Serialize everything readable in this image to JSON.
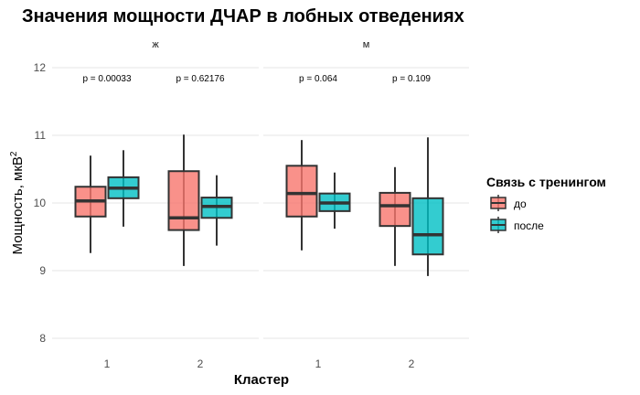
{
  "chart_data": {
    "type": "boxplot",
    "title": "Значения мощности ДЧАР в лобных отведениях",
    "xlabel": "Кластер",
    "ylabel": "Мощность, мкВ",
    "ylabel_sup": "2",
    "ylim": [
      8,
      12
    ],
    "yticks": [
      8,
      9,
      10,
      11,
      12
    ],
    "categories": [
      "1",
      "2"
    ],
    "grid": true,
    "legend": {
      "title": "Связь с тренингом",
      "placement": "right",
      "entries": [
        {
          "name": "до",
          "color": "#F8766D"
        },
        {
          "name": "после",
          "color": "#00BFC4"
        }
      ]
    },
    "panels": [
      {
        "label": "ж",
        "pvalues": [
          "p = 0.00033",
          "p = 0.62176"
        ],
        "boxes": [
          {
            "cluster": "1",
            "group": "до",
            "min": 9.26,
            "q1": 9.8,
            "median": 10.03,
            "q3": 10.24,
            "max": 10.7
          },
          {
            "cluster": "1",
            "group": "после",
            "min": 9.65,
            "q1": 10.07,
            "median": 10.22,
            "q3": 10.38,
            "max": 10.78
          },
          {
            "cluster": "2",
            "group": "до",
            "min": 9.07,
            "q1": 9.6,
            "median": 9.78,
            "q3": 10.47,
            "max": 11.01
          },
          {
            "cluster": "2",
            "group": "после",
            "min": 9.37,
            "q1": 9.78,
            "median": 9.95,
            "q3": 10.08,
            "max": 10.41
          }
        ]
      },
      {
        "label": "м",
        "pvalues": [
          "p = 0.064",
          "p = 0.109"
        ],
        "boxes": [
          {
            "cluster": "1",
            "group": "до",
            "min": 9.3,
            "q1": 9.8,
            "median": 10.14,
            "q3": 10.55,
            "max": 10.93
          },
          {
            "cluster": "1",
            "group": "после",
            "min": 9.62,
            "q1": 9.88,
            "median": 10.0,
            "q3": 10.14,
            "max": 10.45
          },
          {
            "cluster": "2",
            "group": "до",
            "min": 9.07,
            "q1": 9.66,
            "median": 9.96,
            "q3": 10.15,
            "max": 10.53
          },
          {
            "cluster": "2",
            "group": "после",
            "min": 8.92,
            "q1": 9.24,
            "median": 9.53,
            "q3": 10.07,
            "max": 10.97
          }
        ]
      }
    ]
  }
}
